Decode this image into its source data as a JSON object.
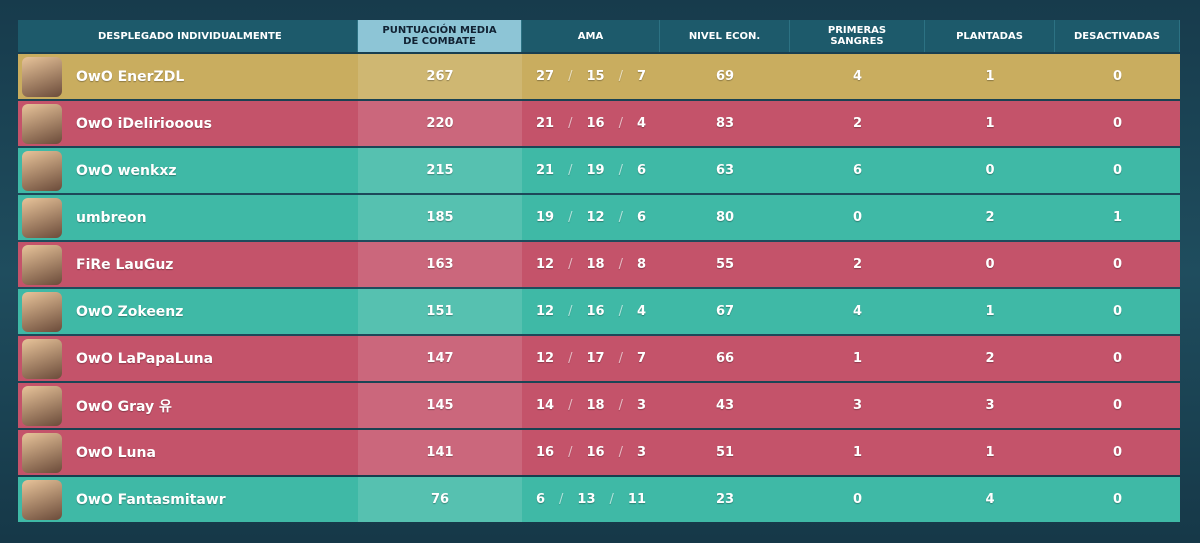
{
  "scoreboard": {
    "headers": [
      "DESPLEGADO INDIVIDUALMENTE",
      "PUNTUACIÓN MEDIA DE COMBATE",
      "AMA",
      "NIVEL ECON.",
      "PRIMERAS SANGRES",
      "PLANTADAS",
      "DESACTIVADAS"
    ],
    "kda_separator": "/",
    "rows": [
      {
        "name": "OwO EnerZDL",
        "acs": 267,
        "kills": 27,
        "deaths": 15,
        "assists": 7,
        "econ": 69,
        "first_bloods": 4,
        "plants": 1,
        "defuses": 0,
        "color": "#c9ad5f"
      },
      {
        "name": "OwO iDeliriooous",
        "acs": 220,
        "kills": 21,
        "deaths": 16,
        "assists": 4,
        "econ": 83,
        "first_bloods": 2,
        "plants": 1,
        "defuses": 0,
        "color": "#c4536a"
      },
      {
        "name": "OwO wenkxz",
        "acs": 215,
        "kills": 21,
        "deaths": 19,
        "assists": 6,
        "econ": 63,
        "first_bloods": 6,
        "plants": 0,
        "defuses": 0,
        "color": "#3fb9a6"
      },
      {
        "name": "umbreon",
        "acs": 185,
        "kills": 19,
        "deaths": 12,
        "assists": 6,
        "econ": 80,
        "first_bloods": 0,
        "plants": 2,
        "defuses": 1,
        "color": "#3fb9a6"
      },
      {
        "name": "FiRe LauGuz",
        "acs": 163,
        "kills": 12,
        "deaths": 18,
        "assists": 8,
        "econ": 55,
        "first_bloods": 2,
        "plants": 0,
        "defuses": 0,
        "color": "#c4536a"
      },
      {
        "name": "OwO Zokeenz",
        "acs": 151,
        "kills": 12,
        "deaths": 16,
        "assists": 4,
        "econ": 67,
        "first_bloods": 4,
        "plants": 1,
        "defuses": 0,
        "color": "#3fb9a6"
      },
      {
        "name": "OwO LaPapaLuna",
        "acs": 147,
        "kills": 12,
        "deaths": 17,
        "assists": 7,
        "econ": 66,
        "first_bloods": 1,
        "plants": 2,
        "defuses": 0,
        "color": "#c4536a"
      },
      {
        "name": "OwO Gray 유",
        "acs": 145,
        "kills": 14,
        "deaths": 18,
        "assists": 3,
        "econ": 43,
        "first_bloods": 3,
        "plants": 3,
        "defuses": 0,
        "color": "#c4536a"
      },
      {
        "name": "OwO Luna",
        "acs": 141,
        "kills": 16,
        "deaths": 16,
        "assists": 3,
        "econ": 51,
        "first_bloods": 1,
        "plants": 1,
        "defuses": 0,
        "color": "#c4536a"
      },
      {
        "name": "OwO Fantasmitawr",
        "acs": 76,
        "kills": 6,
        "deaths": 13,
        "assists": 11,
        "econ": 23,
        "first_bloods": 0,
        "plants": 4,
        "defuses": 0,
        "color": "#3fb9a6"
      }
    ]
  }
}
